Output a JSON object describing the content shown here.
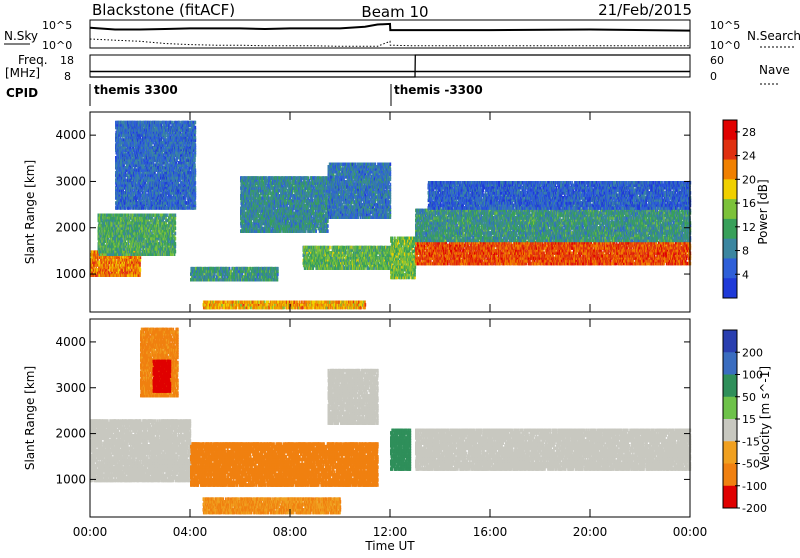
{
  "header": {
    "radar": "Blackstone (fitACF)",
    "beam": "Beam 10",
    "date": "21/Feb/2015"
  },
  "panel_labels": {
    "nsky": "N.Sky",
    "nsearch": "N.Search",
    "freq_line1": "Freq.",
    "freq_line2": "[MHz]",
    "nave": "Nave",
    "cpid": "CPID"
  },
  "noise_axis": {
    "left_top": "10^5",
    "left_bottom": "10^0",
    "right_top": "10^5",
    "right_bottom": "10^0"
  },
  "freq_axis": {
    "left_top": "18",
    "left_bottom": "8",
    "right_top": "60",
    "right_bottom": "0"
  },
  "cpid_labels": [
    {
      "text": "themis 3300",
      "start_hour": 0.0
    },
    {
      "text": "themis -3300",
      "start_hour": 12.0
    }
  ],
  "colors": {
    "power": [
      "#1f3ad8",
      "#2e5fd8",
      "#3b86a0",
      "#38a05a",
      "#7cc23a",
      "#f0d000",
      "#f08000",
      "#e03010",
      "#e00000"
    ],
    "velocity_pos": [
      "#2a3fb0",
      "#3a6dc0",
      "#2f8f5a",
      "#6ec24a"
    ],
    "velocity_neutral": "#c8c8c0",
    "velocity_neg": [
      "#f0a020",
      "#f08010",
      "#e85010",
      "#e00000"
    ]
  },
  "chart_data": [
    {
      "type": "heatmap",
      "title": "Power",
      "xlabel": "Time UT",
      "ylabel": "Slant Range [km]",
      "x_ticks": [
        "00:00",
        "04:00",
        "08:00",
        "12:00",
        "16:00",
        "20:00",
        "00:00"
      ],
      "xlim_hours": [
        0,
        24
      ],
      "y_ticks": [
        "1000",
        "2000",
        "3000",
        "4000"
      ],
      "ylim_km": [
        180,
        4500
      ],
      "colorbar": {
        "label": "Power [dB]",
        "ticks": [
          "4",
          "8",
          "12",
          "16",
          "20",
          "24",
          "28"
        ],
        "range": [
          0,
          30
        ]
      },
      "bands": [
        {
          "t0": 0.0,
          "t1": 2.0,
          "r0": 950,
          "r1": 1500,
          "value": 22
        },
        {
          "t0": 0.3,
          "t1": 3.4,
          "r0": 1400,
          "r1": 2300,
          "value": 12
        },
        {
          "t0": 1.0,
          "t1": 4.2,
          "r0": 2400,
          "r1": 4300,
          "value": 6
        },
        {
          "t0": 4.0,
          "t1": 7.5,
          "r0": 850,
          "r1": 1150,
          "value": 10
        },
        {
          "t0": 6.0,
          "t1": 9.5,
          "r0": 1900,
          "r1": 3100,
          "value": 9
        },
        {
          "t0": 8.5,
          "t1": 12.0,
          "r0": 1100,
          "r1": 1600,
          "value": 13
        },
        {
          "t0": 9.5,
          "t1": 12.0,
          "r0": 2200,
          "r1": 3400,
          "value": 7
        },
        {
          "t0": 12.0,
          "t1": 13.0,
          "r0": 900,
          "r1": 1800,
          "value": 14
        },
        {
          "t0": 13.0,
          "t1": 24.0,
          "r0": 1200,
          "r1": 1700,
          "value": 24
        },
        {
          "t0": 13.0,
          "t1": 24.0,
          "r0": 1700,
          "r1": 2400,
          "value": 10
        },
        {
          "t0": 13.5,
          "t1": 24.0,
          "r0": 2400,
          "r1": 3000,
          "value": 5
        },
        {
          "t0": 4.5,
          "t1": 11.0,
          "r0": 250,
          "r1": 420,
          "value": 20
        }
      ]
    },
    {
      "type": "heatmap",
      "title": "Velocity",
      "xlabel": "Time UT",
      "ylabel": "Slant Range [km]",
      "x_ticks": [
        "00:00",
        "04:00",
        "08:00",
        "12:00",
        "16:00",
        "20:00",
        "00:00"
      ],
      "xlim_hours": [
        0,
        24
      ],
      "y_ticks": [
        "1000",
        "2000",
        "3000",
        "4000"
      ],
      "ylim_km": [
        180,
        4500
      ],
      "colorbar": {
        "label": "Velocity [m s^-1]",
        "ticks": [
          "200",
          "100",
          "50",
          "15",
          "-15",
          "-50",
          "-100",
          "-200"
        ],
        "range": [
          -250,
          250
        ]
      },
      "bands": [
        {
          "t0": 0.0,
          "t1": 4.0,
          "r0": 950,
          "r1": 2300,
          "value": 0
        },
        {
          "t0": 2.0,
          "t1": 3.5,
          "r0": 2800,
          "r1": 4300,
          "value": -60
        },
        {
          "t0": 2.5,
          "t1": 3.2,
          "r0": 2900,
          "r1": 3600,
          "value": -200
        },
        {
          "t0": 4.0,
          "t1": 11.5,
          "r0": 850,
          "r1": 1800,
          "value": -70
        },
        {
          "t0": 4.5,
          "t1": 10.0,
          "r0": 250,
          "r1": 600,
          "value": -50
        },
        {
          "t0": 9.5,
          "t1": 11.5,
          "r0": 2200,
          "r1": 3400,
          "value": 0
        },
        {
          "t0": 12.0,
          "t1": 12.8,
          "r0": 1200,
          "r1": 2100,
          "value": 60
        },
        {
          "t0": 13.0,
          "t1": 24.0,
          "r0": 1200,
          "r1": 2100,
          "value": 0
        }
      ]
    }
  ],
  "noise_series": {
    "hours": [
      0,
      1,
      2,
      3,
      4,
      5,
      6,
      7,
      8,
      9,
      10,
      11,
      11.5,
      12,
      12.01,
      13,
      16,
      20,
      24
    ],
    "nsky": [
      3.6,
      3.3,
      3.3,
      3.4,
      3.5,
      3.5,
      3.5,
      3.4,
      3.5,
      3.5,
      3.5,
      3.8,
      4.2,
      4.3,
      3.2,
      3.2,
      3.2,
      3.3,
      3.1
    ],
    "nsearch": [
      1.6,
      1.4,
      1.2,
      0.8,
      0.6,
      0.5,
      0.5,
      0.4,
      0.4,
      0.4,
      0.3,
      0.3,
      0.3,
      1.2,
      0.5,
      0.4,
      0.4,
      0.4,
      0.4
    ]
  },
  "freq_series": {
    "hours": [
      0,
      24
    ],
    "mhz": [
      10.5,
      10.5
    ]
  },
  "nave_series": {
    "hours": [
      0,
      13.0,
      13.01,
      24
    ],
    "value": [
      0,
      0,
      60,
      60
    ]
  }
}
